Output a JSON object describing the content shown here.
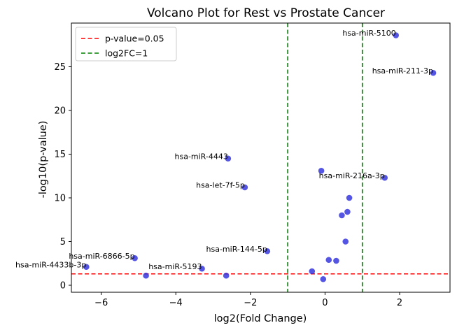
{
  "chart_data": {
    "type": "scatter",
    "title": "Volcano Plot for Rest vs Prostate Cancer",
    "xlabel": "log2(Fold Change)",
    "ylabel": "-log10(p-value)",
    "xlim": [
      -6.8,
      3.35
    ],
    "ylim": [
      -0.8,
      30
    ],
    "xticks": [
      -6,
      -4,
      -2,
      0,
      2
    ],
    "yticks": [
      0,
      5,
      10,
      15,
      20,
      25
    ],
    "point_color": "#2b2bdc",
    "points": [
      {
        "x": 1.9,
        "y": 28.6,
        "label": "hsa-miR-5100"
      },
      {
        "x": 2.9,
        "y": 24.3,
        "label": "hsa-miR-211-3p"
      },
      {
        "x": -2.6,
        "y": 14.5,
        "label": "hsa-miR-4443"
      },
      {
        "x": -0.1,
        "y": 13.1,
        "label": ""
      },
      {
        "x": 1.6,
        "y": 12.3,
        "label": "hsa-miR-216a-3p"
      },
      {
        "x": -2.15,
        "y": 11.2,
        "label": "hsa-let-7f-5p"
      },
      {
        "x": 0.65,
        "y": 10.0,
        "label": ""
      },
      {
        "x": 0.6,
        "y": 8.4,
        "label": ""
      },
      {
        "x": 0.45,
        "y": 8.0,
        "label": ""
      },
      {
        "x": 0.55,
        "y": 5.0,
        "label": ""
      },
      {
        "x": -1.55,
        "y": 3.9,
        "label": "hsa-miR-144-5p"
      },
      {
        "x": -5.1,
        "y": 3.1,
        "label": "hsa-miR-6866-5p"
      },
      {
        "x": 0.1,
        "y": 2.9,
        "label": ""
      },
      {
        "x": 0.3,
        "y": 2.8,
        "label": ""
      },
      {
        "x": -6.4,
        "y": 2.1,
        "label": "hsa-miR-4433b-3p"
      },
      {
        "x": -3.3,
        "y": 1.9,
        "label": "hsa-miR-5193"
      },
      {
        "x": -0.35,
        "y": 1.6,
        "label": ""
      },
      {
        "x": -4.8,
        "y": 1.1,
        "label": ""
      },
      {
        "x": -2.65,
        "y": 1.1,
        "label": ""
      },
      {
        "x": -0.05,
        "y": 0.7,
        "label": ""
      }
    ],
    "threshold_lines": [
      {
        "orientation": "horizontal",
        "value": 1.3,
        "color": "#ff0000",
        "label": "p-value=0.05"
      },
      {
        "orientation": "vertical",
        "value": -1,
        "color": "#008000",
        "label": "log2FC=1"
      },
      {
        "orientation": "vertical",
        "value": 1,
        "color": "#008000",
        "label": ""
      }
    ],
    "legend": {
      "position": "top-left",
      "entries": [
        {
          "label": "p-value=0.05",
          "color": "#ff0000"
        },
        {
          "label": "log2FC=1",
          "color": "#008000"
        }
      ]
    },
    "grid": false
  }
}
